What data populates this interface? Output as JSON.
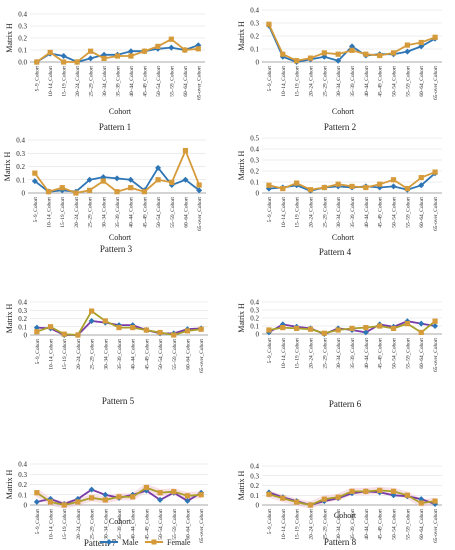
{
  "figure": {
    "legend": {
      "male_label": "Male",
      "female_label": "Female"
    }
  },
  "chart_data": [
    {
      "type": "line",
      "caption": "Pattern 1",
      "xlabel": "Cohort",
      "ylabel": "Matrix H",
      "ylim": [
        0,
        0.4
      ],
      "yticks": [
        "0.0",
        "0.1",
        "0.2",
        "0.3",
        "0.4"
      ],
      "grid": true,
      "categories": [
        "5–9_Cohort",
        "10–14_Cohort",
        "15–19_Cohort",
        "20–24_Cohort",
        "25–29_Cohort",
        "30–34_Cohort",
        "35–39_Cohort",
        "40–44_Cohort",
        "45–49_Cohort",
        "50–54_Cohort",
        "55–59_Cohort",
        "60–64_Cohort",
        "65-over_Cohort"
      ],
      "series": [
        {
          "name": "Male",
          "values": [
            0.0,
            0.07,
            0.05,
            0.0,
            0.03,
            0.06,
            0.06,
            0.09,
            0.09,
            0.11,
            0.12,
            0.1,
            0.14
          ]
        },
        {
          "name": "Female",
          "values": [
            0.0,
            0.08,
            0.0,
            0.0,
            0.09,
            0.03,
            0.05,
            0.05,
            0.09,
            0.13,
            0.19,
            0.1,
            0.11
          ]
        }
      ]
    },
    {
      "type": "line",
      "caption": "Pattern 2",
      "xlabel": "Cohort",
      "ylabel": "Matrix H",
      "ylim": [
        0,
        0.4
      ],
      "yticks": [
        "0",
        "0.1",
        "0.2",
        "0.3",
        "0.4"
      ],
      "grid": true,
      "categories": [
        "5–9_Cohort",
        "10–14_Cohort",
        "15–19_Cohort",
        "20–24_Cohort",
        "25–29_Cohort",
        "30–34_Cohort",
        "35–39_Cohort",
        "40–44_Cohort",
        "45–49_Cohort",
        "50–54_Cohort",
        "55–59_Cohort",
        "60–64_Cohort",
        "65-over_Cohort"
      ],
      "series": [
        {
          "name": "Male",
          "values": [
            0.28,
            0.04,
            0.0,
            0.02,
            0.04,
            0.01,
            0.12,
            0.05,
            0.06,
            0.06,
            0.08,
            0.12,
            0.18
          ]
        },
        {
          "name": "Female",
          "values": [
            0.29,
            0.06,
            0.01,
            0.03,
            0.07,
            0.06,
            0.09,
            0.06,
            0.05,
            0.07,
            0.13,
            0.15,
            0.19
          ]
        }
      ]
    },
    {
      "type": "line",
      "caption": "Pattern 3",
      "xlabel": "Cohort",
      "ylabel": "Matrix H",
      "ylim": [
        0,
        0.4
      ],
      "yticks": [
        "0",
        "0.1",
        "0.2",
        "0.3",
        "0.4"
      ],
      "grid": true,
      "categories": [
        "5–9_Cohort",
        "10–14_Cohort",
        "15–19_Cohort",
        "20–24_Cohort",
        "25–29_Cohort",
        "30–34_Cohort",
        "35–39_Cohort",
        "40–44_Cohort",
        "45–49_Cohort",
        "50–54_Cohort",
        "55–59_Cohort",
        "60–64_Cohort",
        "65-over_Cohort"
      ],
      "series": [
        {
          "name": "Male",
          "values": [
            0.09,
            0.01,
            0.02,
            0.01,
            0.1,
            0.12,
            0.11,
            0.1,
            0.02,
            0.19,
            0.06,
            0.1,
            0.02
          ]
        },
        {
          "name": "Female",
          "values": [
            0.15,
            0.01,
            0.04,
            0.0,
            0.02,
            0.09,
            0.01,
            0.04,
            0.01,
            0.1,
            0.08,
            0.32,
            0.06
          ]
        }
      ]
    },
    {
      "type": "line",
      "caption": "Pattern 4",
      "xlabel": "Cohort",
      "ylabel": "Matrix H",
      "ylim": [
        0,
        0.5
      ],
      "yticks": [
        "0",
        "0.1",
        "0.2",
        "0.3",
        "0.4",
        "0.5"
      ],
      "grid": true,
      "categories": [
        "5–9_Cohort",
        "10–14_Cohort",
        "15–19_Cohort",
        "20–24_Cohort",
        "25–29_Cohort",
        "30–34_Cohort",
        "35–39_Cohort",
        "40–44_Cohort",
        "45–49_Cohort",
        "50–54_Cohort",
        "55–59_Cohort",
        "60–64_Cohort",
        "65-over_Cohort"
      ],
      "series": [
        {
          "name": "Male",
          "values": [
            0.04,
            0.05,
            0.07,
            0.02,
            0.05,
            0.06,
            0.05,
            0.06,
            0.05,
            0.06,
            0.03,
            0.07,
            0.18
          ]
        },
        {
          "name": "Female",
          "values": [
            0.07,
            0.04,
            0.09,
            0.03,
            0.05,
            0.08,
            0.06,
            0.05,
            0.08,
            0.12,
            0.04,
            0.14,
            0.19
          ]
        }
      ]
    },
    {
      "type": "line",
      "caption": "Pattern 5",
      "xlabel": "",
      "ylabel": "Matrix H",
      "ylim": [
        0,
        0.4
      ],
      "yticks": [
        "0",
        "0.1",
        "0.2",
        "0.3",
        "0.4"
      ],
      "grid": true,
      "categories": [
        "5–9_Cohort",
        "10–14_Cohort",
        "15–19_Cohort",
        "20–24_Cohort",
        "25–29_Cohort",
        "30–34_Cohort",
        "35–39_Cohort",
        "40–44_Cohort",
        "45–49_Cohort",
        "50–54_Cohort",
        "55–59_Cohort",
        "60–64_Cohort",
        "65-over_Cohort"
      ],
      "series": [
        {
          "name": "Male",
          "values": [
            0.09,
            0.08,
            0.0,
            0.0,
            0.17,
            0.15,
            0.12,
            0.12,
            0.06,
            0.02,
            0.02,
            0.07,
            0.08
          ]
        },
        {
          "name": "Female",
          "values": [
            0.04,
            0.1,
            0.01,
            0.0,
            0.29,
            0.17,
            0.09,
            0.09,
            0.06,
            0.03,
            0.0,
            0.05,
            0.07
          ]
        }
      ]
    },
    {
      "type": "line",
      "caption": "Pattern 6",
      "xlabel": "",
      "ylabel": "Matrix H",
      "ylim": [
        0,
        0.4
      ],
      "yticks": [
        "0",
        "0.1",
        "0.2",
        "0.3",
        "0.4"
      ],
      "grid": true,
      "categories": [
        "5–9_Cohort",
        "10–14_Cohort",
        "15–19_Cohort",
        "20–24_Cohort",
        "25–29_Cohort",
        "30–34_Cohort",
        "35–39_Cohort",
        "40–44_Cohort",
        "45–49_Cohort",
        "50–54_Cohort",
        "55–59_Cohort",
        "60–64_Cohort",
        "65-over_Cohort"
      ],
      "series": [
        {
          "name": "Male",
          "values": [
            0.02,
            0.12,
            0.09,
            0.07,
            0.0,
            0.07,
            0.05,
            0.02,
            0.12,
            0.09,
            0.16,
            0.13,
            0.1
          ]
        },
        {
          "name": "Female",
          "values": [
            0.05,
            0.08,
            0.07,
            0.06,
            0.01,
            0.05,
            0.07,
            0.08,
            0.1,
            0.07,
            0.13,
            0.02,
            0.16
          ]
        }
      ]
    },
    {
      "type": "line",
      "caption": "Pattern 7",
      "xlabel": "Cohort",
      "ylabel": "Matrix H",
      "ylim": [
        0,
        0.4
      ],
      "yticks": [
        "0",
        "0.1",
        "0.2",
        "0.3",
        "0.4"
      ],
      "grid": true,
      "categories": [
        "5–9_Cohort",
        "10–14_Cohort",
        "15–19_Cohort",
        "20–24_Cohort",
        "25–29_Cohort",
        "30–34_Cohort",
        "35–39_Cohort",
        "40–44_Cohort",
        "45–49_Cohort",
        "50–54_Cohort",
        "55–59_Cohort",
        "60–64_Cohort",
        "65-over_Cohort"
      ],
      "series": [
        {
          "name": "Male",
          "values": [
            0.03,
            0.06,
            0.01,
            0.06,
            0.15,
            0.1,
            0.07,
            0.1,
            0.14,
            0.05,
            0.12,
            0.04,
            0.12
          ]
        },
        {
          "name": "Female",
          "values": [
            0.12,
            0.03,
            0.0,
            0.03,
            0.07,
            0.05,
            0.08,
            0.08,
            0.17,
            0.12,
            0.13,
            0.09,
            0.1
          ]
        }
      ]
    },
    {
      "type": "line",
      "caption": "Pattern 8",
      "xlabel": "Cohort",
      "ylabel": "Matrix H",
      "ylim": [
        0,
        0.4
      ],
      "yticks": [
        "0",
        "0.1",
        "0.2",
        "0.3",
        "0.4"
      ],
      "grid": true,
      "categories": [
        "5–9_Cohort",
        "10–14_Cohort",
        "15–19_Cohort",
        "20–24_Cohort",
        "25–29_Cohort",
        "30–34_Cohort",
        "35–39_Cohort",
        "40–44_Cohort",
        "45–49_Cohort",
        "50–54_Cohort",
        "55–59_Cohort",
        "60–64_Cohort",
        "65-over_Cohort"
      ],
      "series": [
        {
          "name": "Male",
          "values": [
            0.13,
            0.08,
            0.04,
            0.0,
            0.04,
            0.07,
            0.12,
            0.14,
            0.13,
            0.1,
            0.09,
            0.06,
            0.01
          ]
        },
        {
          "name": "Female",
          "values": [
            0.11,
            0.07,
            0.03,
            0.0,
            0.06,
            0.08,
            0.14,
            0.14,
            0.15,
            0.14,
            0.1,
            0.02,
            0.04
          ]
        }
      ]
    }
  ],
  "colors": {
    "male": "#2e75b6",
    "female": "#d59a3a",
    "female_band": "#f2c6d4",
    "grid": "#d9d9d9",
    "axis": "#8c8c8c",
    "male_accent": "#7a3aa8",
    "female_accent": "#a8a028"
  }
}
